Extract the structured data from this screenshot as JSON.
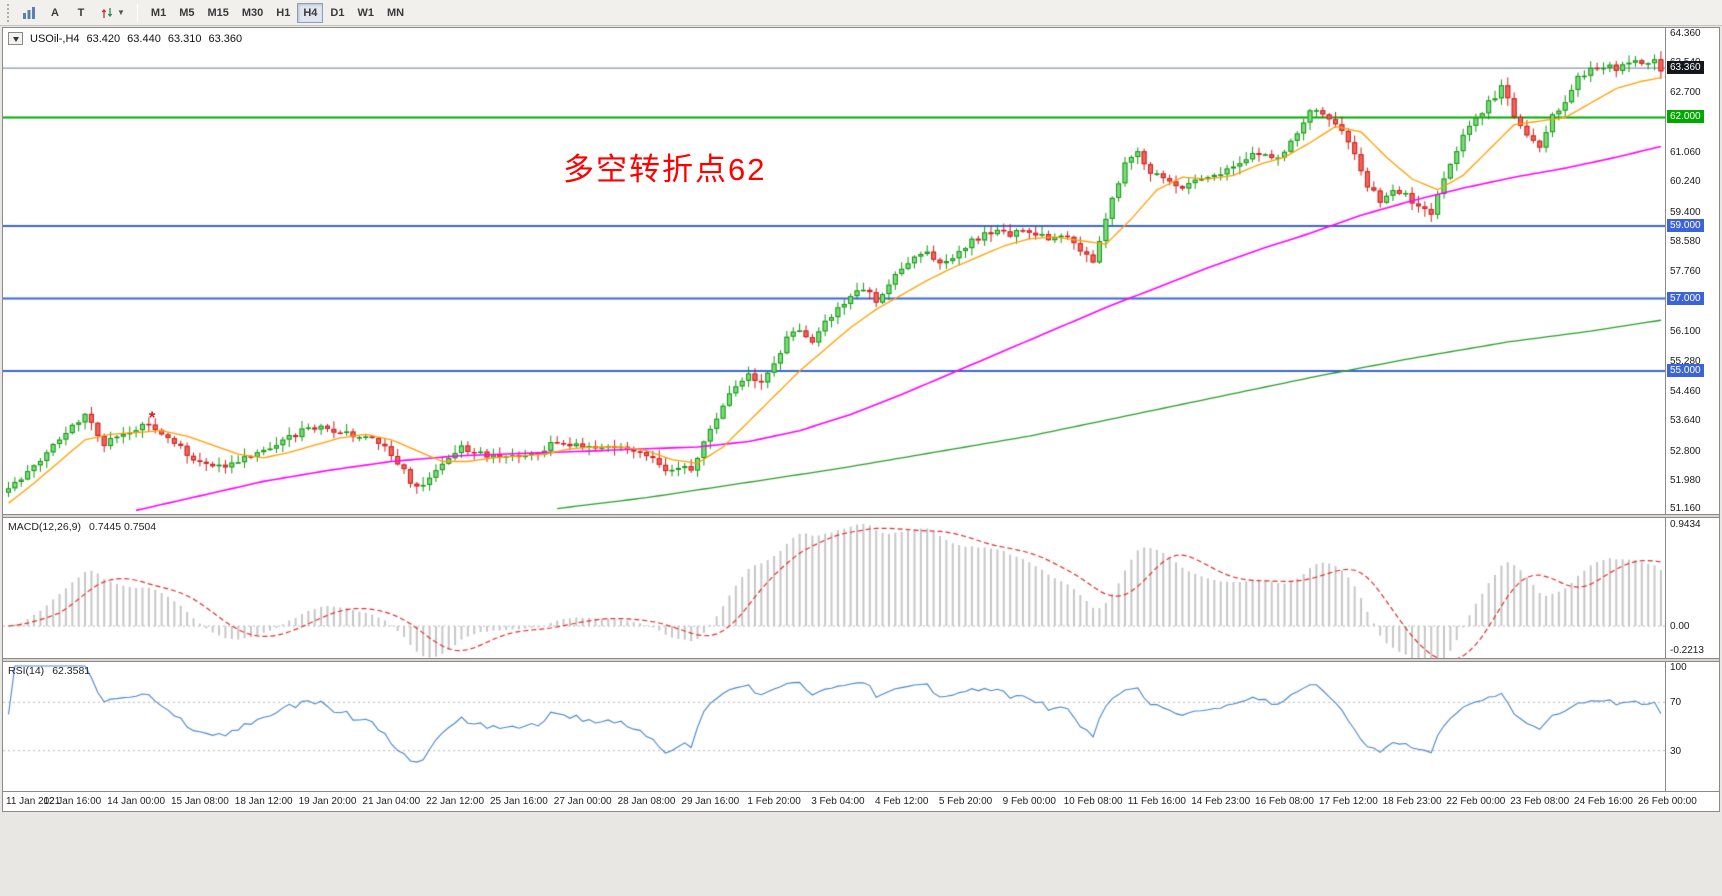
{
  "toolbar": {
    "letter_buttons": [
      "A",
      "T"
    ],
    "icons": [
      "bar-chart-icon",
      "arrows-cycle-icon",
      "chevron-down-icon"
    ],
    "timeframes": [
      {
        "label": "M1",
        "active": false
      },
      {
        "label": "M5",
        "active": false
      },
      {
        "label": "M15",
        "active": false
      },
      {
        "label": "M30",
        "active": false
      },
      {
        "label": "H1",
        "active": false
      },
      {
        "label": "H4",
        "active": true
      },
      {
        "label": "D1",
        "active": false
      },
      {
        "label": "W1",
        "active": false
      },
      {
        "label": "MN",
        "active": false
      }
    ]
  },
  "header": {
    "symbol": "USOil-,H4",
    "open": "63.420",
    "high": "63.440",
    "low": "63.310",
    "close": "63.360"
  },
  "chart": {
    "annotation": {
      "text": "多空转折点62",
      "color": "#ff0000"
    },
    "marker": {
      "bar": 23,
      "price": 53.72,
      "glyph": "*",
      "color": "#cc2020"
    },
    "price_axis_ticks": [
      "64.360",
      "63.540",
      "62.700",
      "61.060",
      "60.240",
      "59.400",
      "58.580",
      "57.760",
      "56.100",
      "55.280",
      "54.460",
      "53.640",
      "52.800",
      "51.980",
      "51.160"
    ]
  },
  "indicators": {
    "macd_label": "MACD(12,26,9)",
    "macd_values": "0.7445 0.7504",
    "macd_axis": [
      "0.9434",
      "0.00",
      "-0.2213"
    ],
    "rsi_label": "RSI(14)",
    "rsi_value": "62.3581",
    "rsi_axis": [
      "100",
      "70",
      "30"
    ]
  },
  "time_axis": {
    "labels": [
      "11 Jan 2021",
      "12 Jan 16:00",
      "14 Jan 00:00",
      "15 Jan 08:00",
      "18 Jan 12:00",
      "19 Jan 20:00",
      "21 Jan 04:00",
      "22 Jan 12:00",
      "25 Jan 16:00",
      "27 Jan 00:00",
      "28 Jan 08:00",
      "29 Jan 16:00",
      "1 Feb 20:00",
      "3 Feb 04:00",
      "4 Feb 12:00",
      "5 Feb 20:00",
      "9 Feb 00:00",
      "10 Feb 08:00",
      "11 Feb 16:00",
      "14 Feb 23:00",
      "16 Feb 08:00",
      "17 Feb 12:00",
      "18 Feb 23:00",
      "22 Feb 00:00",
      "23 Feb 08:00",
      "24 Feb 16:00",
      "26 Feb 00:00"
    ]
  },
  "chart_data": {
    "type": "candlestick",
    "symbol": "USOil",
    "timeframe": "H4",
    "title": "USOil H4 candlestick chart with MA fast/mid/slow overlays, horizontal levels 63.360/62.000/59.000/57.000/55.000, MACD(12,26,9) and RSI(14) subwindows",
    "bars": 260,
    "bar_spacing": 6.38,
    "ylim": [
      51.16,
      64.36
    ],
    "close_waypoints": [
      [
        0,
        51.75
      ],
      [
        4,
        52.4
      ],
      [
        8,
        53.1
      ],
      [
        12,
        53.85
      ],
      [
        15,
        53.0
      ],
      [
        18,
        53.3
      ],
      [
        22,
        53.6
      ],
      [
        24,
        53.3
      ],
      [
        28,
        52.7
      ],
      [
        32,
        52.35
      ],
      [
        36,
        52.5
      ],
      [
        39,
        52.75
      ],
      [
        44,
        53.2
      ],
      [
        48,
        53.45
      ],
      [
        53,
        53.3
      ],
      [
        57,
        53.1
      ],
      [
        60,
        52.7
      ],
      [
        63,
        51.95
      ],
      [
        65,
        51.8
      ],
      [
        68,
        52.4
      ],
      [
        71,
        52.9
      ],
      [
        75,
        52.65
      ],
      [
        79,
        52.6
      ],
      [
        83,
        52.75
      ],
      [
        86,
        53.05
      ],
      [
        90,
        52.9
      ],
      [
        94,
        52.95
      ],
      [
        98,
        52.8
      ],
      [
        101,
        52.55
      ],
      [
        103,
        52.2
      ],
      [
        105,
        52.4
      ],
      [
        107,
        52.3
      ],
      [
        108,
        52.6
      ],
      [
        110,
        53.4
      ],
      [
        112,
        54.1
      ],
      [
        114,
        54.6
      ],
      [
        116,
        54.85
      ],
      [
        118,
        54.7
      ],
      [
        120,
        55.2
      ],
      [
        122,
        55.9
      ],
      [
        124,
        56.1
      ],
      [
        126,
        55.85
      ],
      [
        128,
        56.35
      ],
      [
        130,
        56.7
      ],
      [
        132,
        57.05
      ],
      [
        134,
        57.25
      ],
      [
        136,
        56.95
      ],
      [
        139,
        57.6
      ],
      [
        142,
        58.1
      ],
      [
        144,
        58.35
      ],
      [
        146,
        57.95
      ],
      [
        148,
        58.2
      ],
      [
        151,
        58.6
      ],
      [
        154,
        58.85
      ],
      [
        157,
        58.75
      ],
      [
        160,
        58.9
      ],
      [
        163,
        58.6
      ],
      [
        166,
        58.75
      ],
      [
        168,
        58.3
      ],
      [
        170,
        57.95
      ],
      [
        171,
        58.6
      ],
      [
        173,
        59.8
      ],
      [
        175,
        60.7
      ],
      [
        177,
        61.05
      ],
      [
        179,
        60.5
      ],
      [
        181,
        60.25
      ],
      [
        184,
        60.05
      ],
      [
        187,
        60.3
      ],
      [
        190,
        60.45
      ],
      [
        193,
        60.8
      ],
      [
        196,
        61.0
      ],
      [
        199,
        60.9
      ],
      [
        202,
        61.6
      ],
      [
        204,
        62.25
      ],
      [
        207,
        61.95
      ],
      [
        209,
        61.6
      ],
      [
        211,
        60.9
      ],
      [
        213,
        60.1
      ],
      [
        215,
        59.7
      ],
      [
        217,
        60.05
      ],
      [
        219,
        59.85
      ],
      [
        221,
        59.5
      ],
      [
        223,
        59.3
      ],
      [
        225,
        60.3
      ],
      [
        227,
        61.1
      ],
      [
        229,
        61.8
      ],
      [
        231,
        62.2
      ],
      [
        233,
        62.6
      ],
      [
        234,
        62.9
      ],
      [
        236,
        62.0
      ],
      [
        238,
        61.5
      ],
      [
        240,
        61.2
      ],
      [
        242,
        62.0
      ],
      [
        244,
        62.5
      ],
      [
        246,
        63.1
      ],
      [
        248,
        63.35
      ],
      [
        250,
        63.45
      ],
      [
        252,
        63.3
      ],
      [
        254,
        63.6
      ],
      [
        256,
        63.45
      ],
      [
        258,
        63.55
      ],
      [
        259,
        63.36
      ]
    ],
    "ma_fast": {
      "color": "#ff9f00",
      "width": 1.3,
      "waypoints": [
        [
          0,
          51.35
        ],
        [
          4,
          51.9
        ],
        [
          8,
          52.5
        ],
        [
          12,
          53.1
        ],
        [
          16,
          53.25
        ],
        [
          20,
          53.3
        ],
        [
          24,
          53.35
        ],
        [
          28,
          53.2
        ],
        [
          32,
          52.95
        ],
        [
          36,
          52.7
        ],
        [
          40,
          52.6
        ],
        [
          44,
          52.75
        ],
        [
          48,
          52.95
        ],
        [
          52,
          53.15
        ],
        [
          56,
          53.25
        ],
        [
          60,
          53.1
        ],
        [
          64,
          52.8
        ],
        [
          68,
          52.5
        ],
        [
          72,
          52.5
        ],
        [
          76,
          52.6
        ],
        [
          80,
          52.65
        ],
        [
          84,
          52.7
        ],
        [
          88,
          52.85
        ],
        [
          92,
          52.9
        ],
        [
          96,
          52.9
        ],
        [
          100,
          52.8
        ],
        [
          104,
          52.55
        ],
        [
          108,
          52.45
        ],
        [
          112,
          52.9
        ],
        [
          116,
          53.6
        ],
        [
          120,
          54.3
        ],
        [
          124,
          55.0
        ],
        [
          128,
          55.6
        ],
        [
          132,
          56.2
        ],
        [
          136,
          56.7
        ],
        [
          140,
          57.1
        ],
        [
          144,
          57.5
        ],
        [
          148,
          57.85
        ],
        [
          152,
          58.15
        ],
        [
          156,
          58.45
        ],
        [
          160,
          58.65
        ],
        [
          164,
          58.7
        ],
        [
          168,
          58.6
        ],
        [
          172,
          58.5
        ],
        [
          176,
          59.2
        ],
        [
          180,
          60.0
        ],
        [
          184,
          60.35
        ],
        [
          188,
          60.3
        ],
        [
          192,
          60.4
        ],
        [
          196,
          60.7
        ],
        [
          200,
          60.9
        ],
        [
          204,
          61.3
        ],
        [
          208,
          61.75
        ],
        [
          212,
          61.6
        ],
        [
          216,
          60.9
        ],
        [
          220,
          60.3
        ],
        [
          224,
          60.0
        ],
        [
          228,
          60.4
        ],
        [
          232,
          61.1
        ],
        [
          236,
          61.8
        ],
        [
          240,
          61.9
        ],
        [
          244,
          62.0
        ],
        [
          248,
          62.4
        ],
        [
          252,
          62.8
        ],
        [
          256,
          63.0
        ],
        [
          259,
          63.1
        ]
      ]
    },
    "ma_mid": {
      "color": "#ff00ff",
      "width": 1.6,
      "waypoints": [
        [
          20,
          51.15
        ],
        [
          30,
          51.55
        ],
        [
          40,
          51.95
        ],
        [
          50,
          52.25
        ],
        [
          60,
          52.5
        ],
        [
          70,
          52.65
        ],
        [
          80,
          52.72
        ],
        [
          90,
          52.78
        ],
        [
          100,
          52.85
        ],
        [
          108,
          52.9
        ],
        [
          116,
          53.05
        ],
        [
          124,
          53.35
        ],
        [
          132,
          53.8
        ],
        [
          140,
          54.35
        ],
        [
          148,
          54.95
        ],
        [
          156,
          55.55
        ],
        [
          164,
          56.15
        ],
        [
          172,
          56.75
        ],
        [
          180,
          57.3
        ],
        [
          188,
          57.85
        ],
        [
          196,
          58.35
        ],
        [
          204,
          58.8
        ],
        [
          212,
          59.3
        ],
        [
          220,
          59.7
        ],
        [
          228,
          60.05
        ],
        [
          236,
          60.35
        ],
        [
          244,
          60.6
        ],
        [
          252,
          60.9
        ],
        [
          259,
          61.2
        ]
      ]
    },
    "ma_slow": {
      "color": "#2e9a2e",
      "width": 1.3,
      "waypoints": [
        [
          86,
          51.2
        ],
        [
          100,
          51.5
        ],
        [
          115,
          51.9
        ],
        [
          130,
          52.3
        ],
        [
          145,
          52.75
        ],
        [
          160,
          53.2
        ],
        [
          175,
          53.75
        ],
        [
          190,
          54.3
        ],
        [
          205,
          54.85
        ],
        [
          220,
          55.35
        ],
        [
          235,
          55.8
        ],
        [
          248,
          56.1
        ],
        [
          259,
          56.4
        ]
      ]
    },
    "levels": [
      {
        "price": 63.36,
        "label": "63.360",
        "line_color": "#8496a8",
        "tag_bg": "#14181d",
        "width": 1.2
      },
      {
        "price": 62.0,
        "label": "62.000",
        "line_color": "#00a800",
        "tag_bg": "#00a800",
        "width": 2
      },
      {
        "price": 59.0,
        "label": "59.000",
        "line_color": "#3c64d8",
        "tag_bg": "#3c64d8",
        "width": 2
      },
      {
        "price": 57.0,
        "label": "57.000",
        "line_color": "#3c64d8",
        "tag_bg": "#3c64d8",
        "width": 2
      },
      {
        "price": 55.0,
        "label": "55.000",
        "line_color": "#3c64d8",
        "tag_bg": "#3c64d8",
        "width": 2
      }
    ],
    "candle_up": {
      "fill": "#7edc7e",
      "stroke": "#169416"
    },
    "candle_down": {
      "fill": "#f2655a",
      "stroke": "#c62222"
    },
    "macd": {
      "fast": 12,
      "slow": 26,
      "signal": 9,
      "display_values": [
        0.7445,
        0.7504
      ],
      "range": [
        -0.2213,
        0.9434
      ],
      "histogram_color": "#c6c6c6",
      "signal_color": "#e03030",
      "zero_line_color": "#b8b8b8"
    },
    "rsi": {
      "period": 14,
      "display_value": 62.3581,
      "range": [
        0,
        100
      ],
      "levels": [
        30,
        70
      ],
      "line_color": "#4a86c8",
      "level_color": "#b8b8b8"
    }
  }
}
